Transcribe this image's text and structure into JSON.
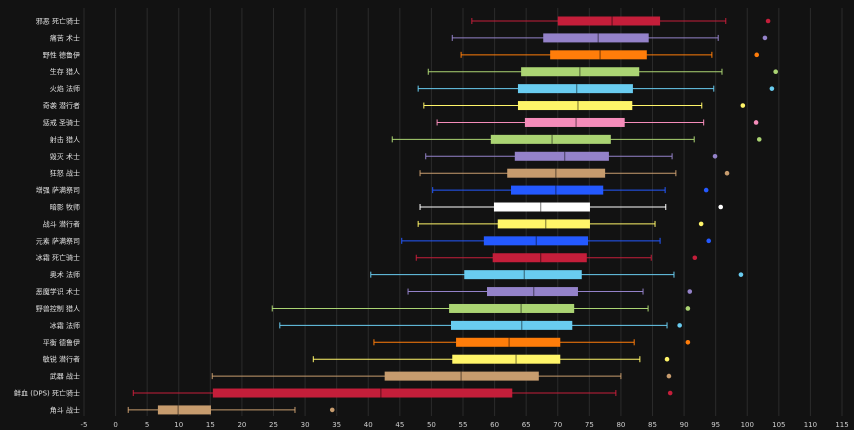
{
  "chart_data": {
    "type": "box",
    "orientation": "horizontal",
    "title": "",
    "xlabel": "",
    "ylabel": "",
    "xlim": [
      -5,
      115
    ],
    "xticks": [
      -5,
      0,
      5,
      10,
      15,
      20,
      25,
      30,
      35,
      40,
      45,
      50,
      55,
      60,
      65,
      70,
      75,
      80,
      85,
      90,
      95,
      100,
      105,
      110,
      115
    ],
    "grid": true,
    "series": [
      {
        "category": "邪恶 死亡骑士",
        "color": "#c41e3a",
        "min": 56.4,
        "q1": 70.0,
        "median": 78.6,
        "q3": 86.2,
        "max": 96.6,
        "outliers": [
          103.3
        ]
      },
      {
        "category": "痛苦 术士",
        "color": "#9482c9",
        "min": 53.3,
        "q1": 67.7,
        "median": 76.4,
        "q3": 84.4,
        "max": 95.4,
        "outliers": [
          102.8
        ]
      },
      {
        "category": "野性 德鲁伊",
        "color": "#ff7d0a",
        "min": 54.7,
        "q1": 68.8,
        "median": 76.7,
        "q3": 84.1,
        "max": 94.4,
        "outliers": [
          101.5
        ]
      },
      {
        "category": "生存 猎人",
        "color": "#abd473",
        "min": 49.5,
        "q1": 64.2,
        "median": 73.5,
        "q3": 82.9,
        "max": 96.0,
        "outliers": [
          104.5
        ]
      },
      {
        "category": "火焰 法师",
        "color": "#69ccf0",
        "min": 47.9,
        "q1": 63.7,
        "median": 73.0,
        "q3": 81.9,
        "max": 94.7,
        "outliers": [
          103.9
        ]
      },
      {
        "category": "奇袭 潜行者",
        "color": "#fff569",
        "min": 48.8,
        "q1": 63.7,
        "median": 73.2,
        "q3": 81.8,
        "max": 92.8,
        "outliers": [
          99.3
        ]
      },
      {
        "category": "惩戒 圣骑士",
        "color": "#f58cba",
        "min": 50.9,
        "q1": 64.8,
        "median": 72.9,
        "q3": 80.6,
        "max": 93.1,
        "outliers": [
          101.4
        ]
      },
      {
        "category": "射击 猎人",
        "color": "#abd473",
        "min": 43.8,
        "q1": 59.4,
        "median": 69.1,
        "q3": 78.4,
        "max": 91.6,
        "outliers": [
          101.9
        ]
      },
      {
        "category": "毁灭 术士",
        "color": "#9482c9",
        "min": 49.1,
        "q1": 63.2,
        "median": 71.1,
        "q3": 78.1,
        "max": 88.1,
        "outliers": [
          94.9
        ]
      },
      {
        "category": "狂怒 战士",
        "color": "#c79c6e",
        "min": 48.2,
        "q1": 62.0,
        "median": 69.7,
        "q3": 77.5,
        "max": 88.7,
        "outliers": [
          96.8
        ]
      },
      {
        "category": "增强 萨满祭司",
        "color": "#2459ff",
        "min": 50.2,
        "q1": 62.6,
        "median": 69.7,
        "q3": 77.2,
        "max": 87.0,
        "outliers": [
          93.5
        ]
      },
      {
        "category": "暗影 牧师",
        "color": "#ffffff",
        "min": 48.2,
        "q1": 59.9,
        "median": 67.3,
        "q3": 75.1,
        "max": 87.1,
        "outliers": [
          95.8
        ]
      },
      {
        "category": "战斗 潜行者",
        "color": "#fff569",
        "min": 47.9,
        "q1": 60.5,
        "median": 68.1,
        "q3": 75.1,
        "max": 85.4,
        "outliers": [
          92.7
        ]
      },
      {
        "category": "元素 萨满祭司",
        "color": "#2459ff",
        "min": 45.3,
        "q1": 58.3,
        "median": 66.6,
        "q3": 74.8,
        "max": 86.2,
        "outliers": [
          93.9
        ]
      },
      {
        "category": "冰霜 死亡骑士",
        "color": "#c41e3a",
        "min": 47.6,
        "q1": 59.7,
        "median": 67.3,
        "q3": 74.6,
        "max": 84.8,
        "outliers": [
          91.7
        ]
      },
      {
        "category": "奥术 法师",
        "color": "#69ccf0",
        "min": 40.4,
        "q1": 55.2,
        "median": 64.7,
        "q3": 73.8,
        "max": 88.4,
        "outliers": [
          99.0
        ]
      },
      {
        "category": "恶魔学识 术士",
        "color": "#9482c9",
        "min": 46.3,
        "q1": 58.8,
        "median": 66.2,
        "q3": 73.2,
        "max": 83.5,
        "outliers": [
          90.9
        ]
      },
      {
        "category": "野兽控制 猎人",
        "color": "#abd473",
        "min": 24.8,
        "q1": 52.8,
        "median": 64.2,
        "q3": 72.6,
        "max": 84.3,
        "outliers": [
          90.6
        ]
      },
      {
        "category": "冰霜 法师",
        "color": "#69ccf0",
        "min": 26.0,
        "q1": 53.1,
        "median": 64.3,
        "q3": 72.3,
        "max": 87.3,
        "outliers": [
          89.3
        ]
      },
      {
        "category": "平衡 德鲁伊",
        "color": "#ff7d0a",
        "min": 40.9,
        "q1": 53.9,
        "median": 62.3,
        "q3": 70.4,
        "max": 82.1,
        "outliers": [
          90.6
        ]
      },
      {
        "category": "敏锐 潜行者",
        "color": "#fff569",
        "min": 31.3,
        "q1": 53.3,
        "median": 63.4,
        "q3": 70.4,
        "max": 83.0,
        "outliers": [
          87.3
        ]
      },
      {
        "category": "武器 战士",
        "color": "#c79c6e",
        "min": 15.3,
        "q1": 42.6,
        "median": 54.7,
        "q3": 67.0,
        "max": 80.0,
        "outliers": [
          87.6
        ]
      },
      {
        "category": "鲜血 (DPS) 死亡骑士",
        "color": "#c41e3a",
        "min": 2.8,
        "q1": 15.4,
        "median": 42.0,
        "q3": 62.8,
        "max": 79.2,
        "outliers": [
          87.8
        ]
      },
      {
        "category": "角斗 战士",
        "color": "#c79c6e",
        "min": 2.0,
        "q1": 6.7,
        "median": 9.9,
        "q3": 15.1,
        "max": 28.4,
        "outliers": [
          34.3
        ]
      }
    ]
  }
}
